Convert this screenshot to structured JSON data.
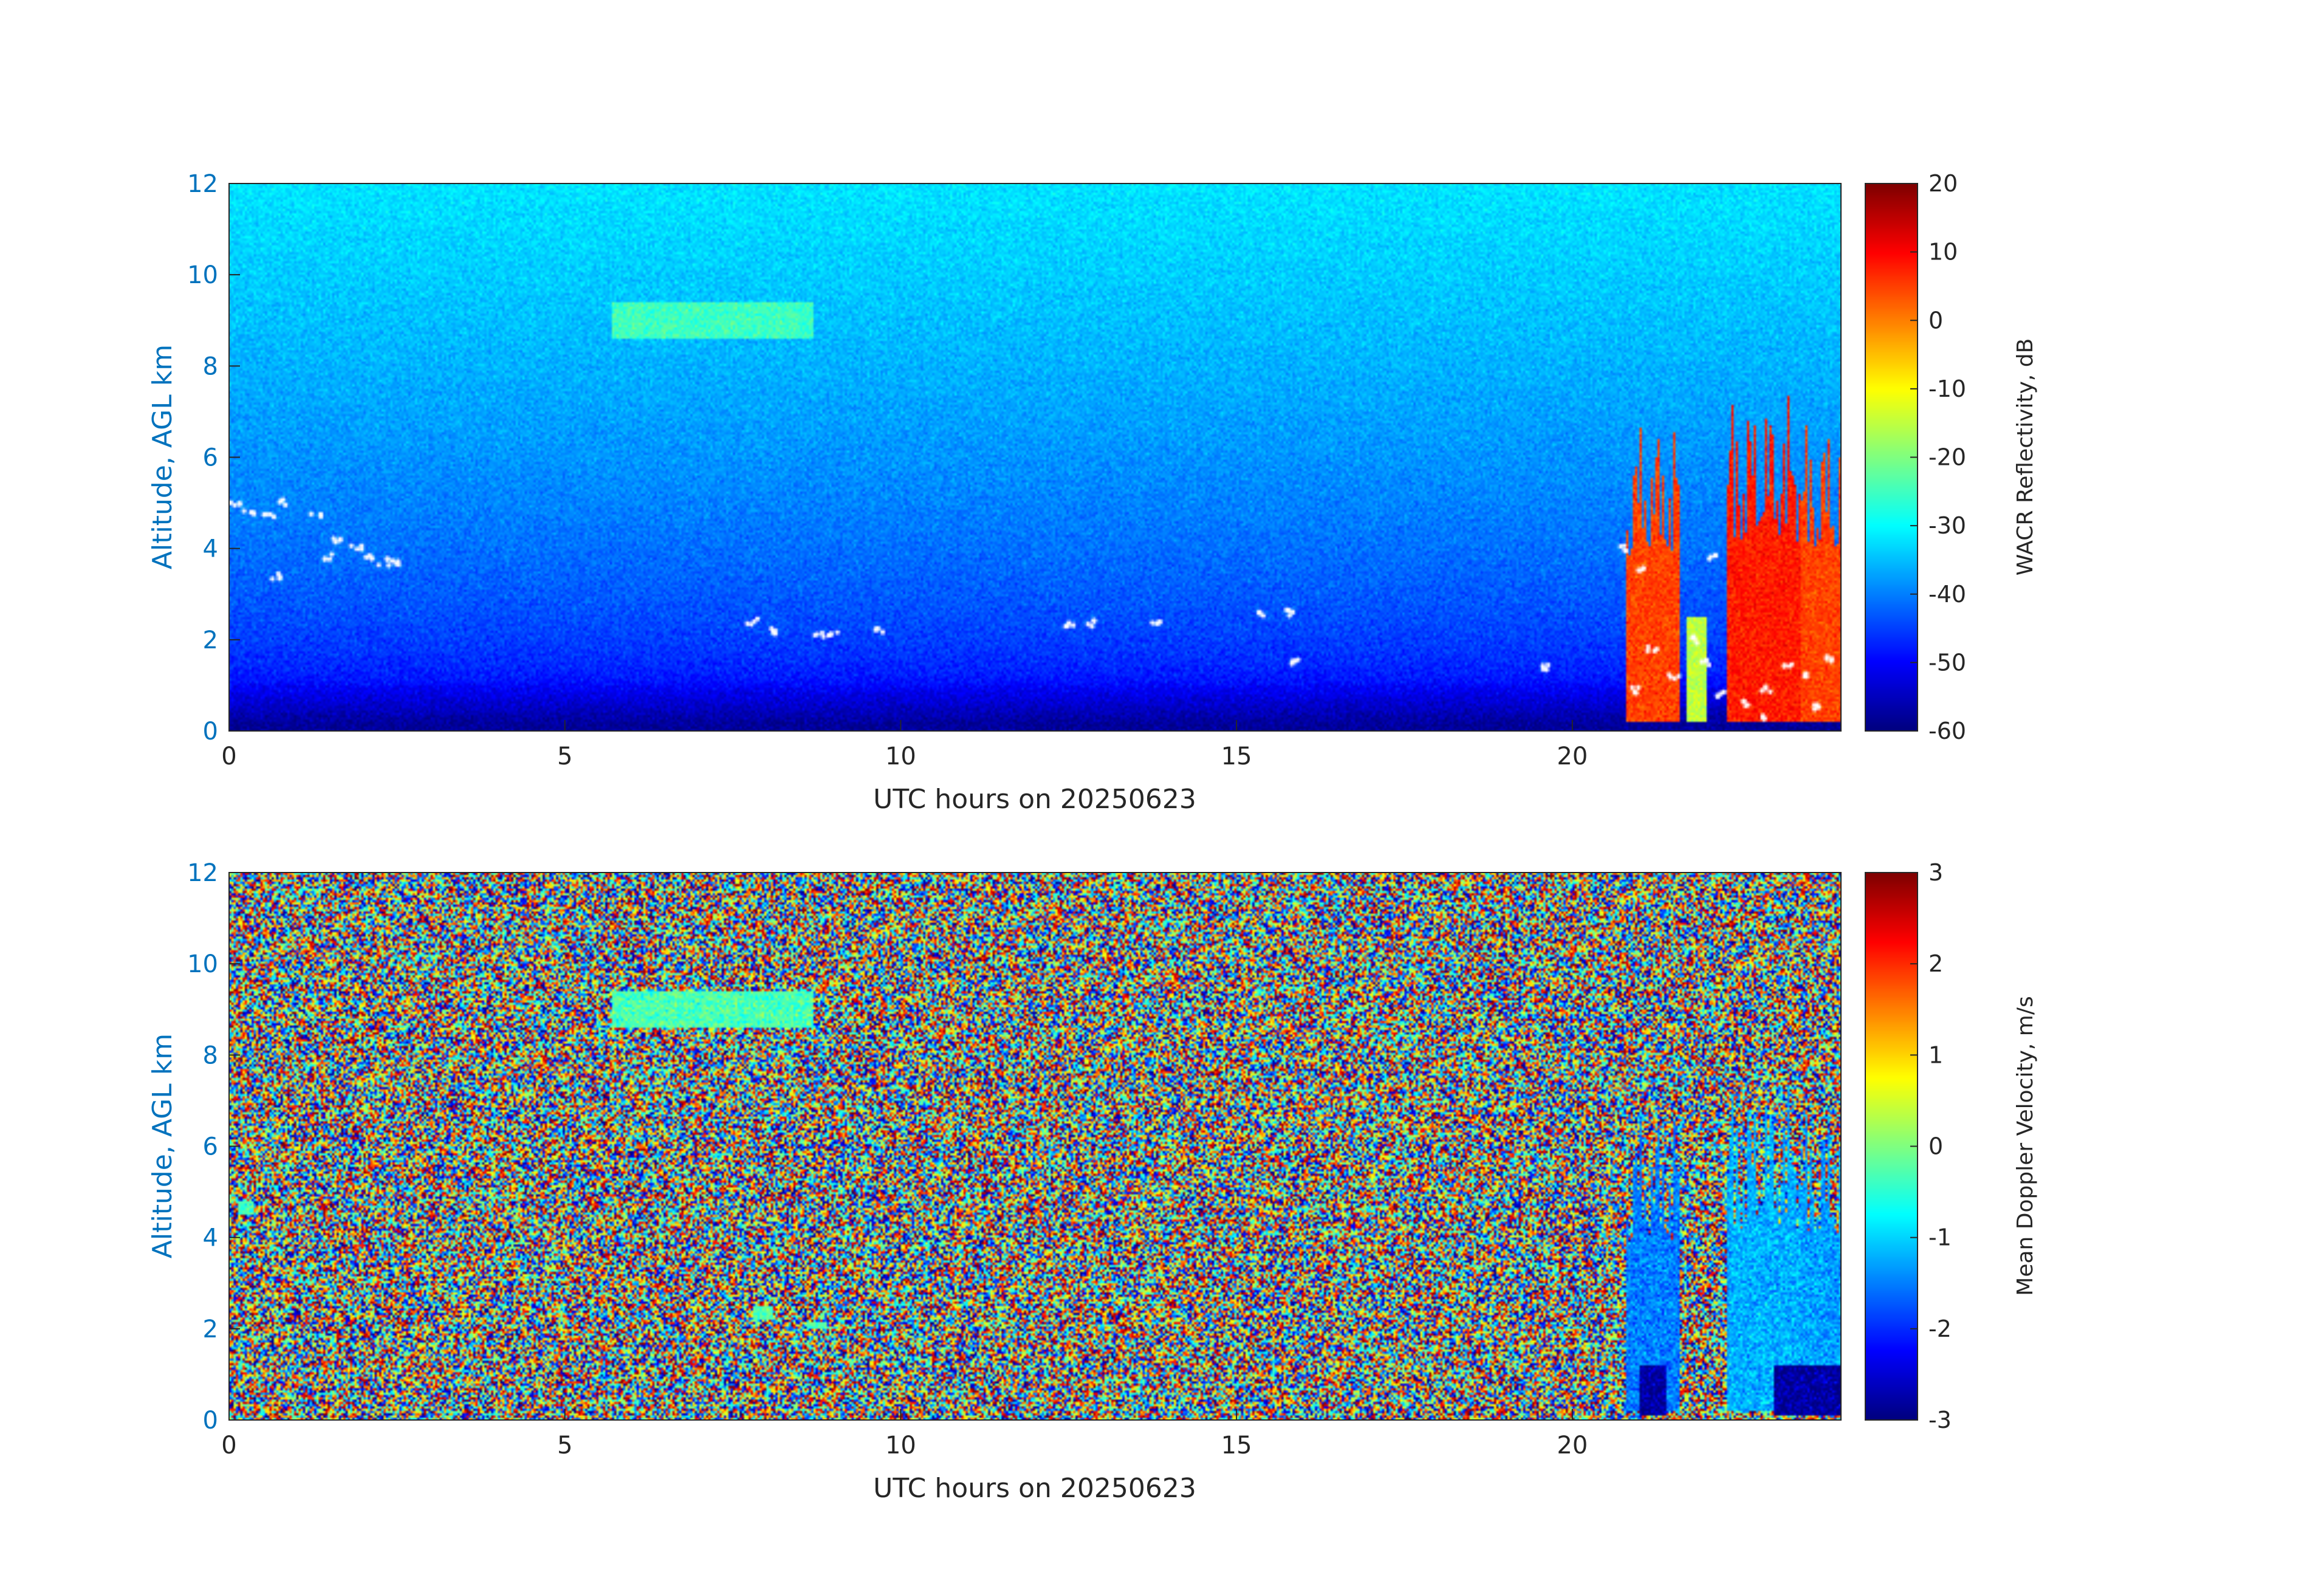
{
  "colors": {
    "ylabel": "#0072BD",
    "ytick": "#0072BD",
    "xtick": "#262626",
    "axis": "#262626"
  },
  "chart_data": [
    {
      "type": "heatmap",
      "id": "reflectivity",
      "xlabel": "UTC hours on 20250623",
      "ylabel": "Altitude, AGL km",
      "xlim": [
        0,
        24
      ],
      "ylim": [
        0,
        12
      ],
      "x_ticks": [
        "0",
        "5",
        "10",
        "15",
        "20"
      ],
      "y_ticks": [
        "0",
        "2",
        "4",
        "6",
        "8",
        "10",
        "12"
      ],
      "colorbar": {
        "label": "WACR Reflectivity, dB",
        "range": [
          -60,
          20
        ],
        "ticks": [
          "20",
          "10",
          "0",
          "-10",
          "-20",
          "-30",
          "-40",
          "-50",
          "-60"
        ],
        "colormap": "jet"
      },
      "background": {
        "description_free_field": "",
        "value_at_12km": -32,
        "value_at_1km": -50,
        "value_near_surface": -58
      },
      "features": [
        {
          "x": [
            5.7,
            8.7
          ],
          "y": [
            8.6,
            9.4
          ],
          "value": -25
        },
        {
          "x": [
            20.8,
            21.6
          ],
          "y": [
            0.2,
            6.8
          ],
          "value": 5
        },
        {
          "x": [
            21.7,
            22.0
          ],
          "y": [
            0.2,
            2.5
          ],
          "value": -15
        },
        {
          "x": [
            22.3,
            23.4
          ],
          "y": [
            0.2,
            7.4
          ],
          "value": 8
        },
        {
          "x": [
            23.4,
            24.0
          ],
          "y": [
            0.2,
            6.8
          ],
          "value": 5
        }
      ],
      "markers": [
        [
          0.1,
          5.0
        ],
        [
          0.3,
          4.8
        ],
        [
          0.6,
          4.7
        ],
        [
          0.8,
          5.0
        ],
        [
          1.3,
          4.7
        ],
        [
          1.6,
          4.2
        ],
        [
          1.9,
          4.0
        ],
        [
          2.1,
          3.8
        ],
        [
          2.3,
          3.7
        ],
        [
          2.5,
          3.7
        ],
        [
          0.7,
          3.4
        ],
        [
          1.5,
          3.8
        ],
        [
          7.8,
          2.4
        ],
        [
          8.1,
          2.2
        ],
        [
          8.8,
          2.1
        ],
        [
          9.0,
          2.1
        ],
        [
          9.7,
          2.2
        ],
        [
          12.5,
          2.3
        ],
        [
          12.8,
          2.35
        ],
        [
          13.8,
          2.35
        ],
        [
          15.4,
          2.55
        ],
        [
          15.8,
          2.6
        ],
        [
          15.9,
          1.5
        ],
        [
          19.6,
          1.4
        ],
        [
          20.8,
          4.0
        ],
        [
          21.0,
          3.5
        ],
        [
          21.2,
          1.8
        ],
        [
          21.5,
          1.2
        ],
        [
          21.8,
          2.0
        ],
        [
          22.0,
          1.5
        ],
        [
          22.1,
          3.8
        ],
        [
          22.2,
          0.8
        ],
        [
          22.6,
          0.6
        ],
        [
          22.9,
          0.9
        ],
        [
          23.2,
          1.4
        ],
        [
          23.5,
          1.2
        ],
        [
          23.8,
          1.6
        ],
        [
          22.8,
          0.3
        ],
        [
          23.6,
          0.5
        ],
        [
          20.9,
          0.9
        ]
      ]
    },
    {
      "type": "heatmap",
      "id": "doppler",
      "xlabel": "UTC hours on 20250623",
      "ylabel": "Altitude, AGL km",
      "xlim": [
        0,
        24
      ],
      "ylim": [
        0,
        12
      ],
      "x_ticks": [
        "0",
        "5",
        "10",
        "15",
        "20"
      ],
      "y_ticks": [
        "0",
        "2",
        "4",
        "6",
        "8",
        "10",
        "12"
      ],
      "colorbar": {
        "label": "Mean Doppler Velocity, m/s",
        "range": [
          -3,
          3
        ],
        "ticks": [
          "3",
          "2",
          "1",
          "0",
          "-1",
          "-2",
          "-3"
        ],
        "colormap": "jet"
      },
      "background": "random noise across full range",
      "features": [
        {
          "x": [
            5.7,
            8.7
          ],
          "y": [
            8.6,
            9.4
          ],
          "value": -0.3
        },
        {
          "x": [
            20.8,
            21.6
          ],
          "y": [
            0.2,
            6.8
          ],
          "value": -1.5
        },
        {
          "x": [
            22.3,
            23.4
          ],
          "y": [
            0.2,
            7.4
          ],
          "value": -1.2
        },
        {
          "x": [
            23.4,
            24.0
          ],
          "y": [
            0.2,
            6.8
          ],
          "value": -1.3
        },
        {
          "x": [
            21.0,
            21.4
          ],
          "y": [
            0.1,
            1.2
          ],
          "value": -2.8
        },
        {
          "x": [
            23.0,
            24.0
          ],
          "y": [
            0.1,
            1.2
          ],
          "value": -2.8
        },
        {
          "x": [
            0.15,
            0.35
          ],
          "y": [
            4.5,
            4.8
          ],
          "value": -0.3
        },
        {
          "x": [
            7.8,
            8.1
          ],
          "y": [
            2.2,
            2.5
          ],
          "value": -0.3
        },
        {
          "x": [
            8.6,
            8.9
          ],
          "y": [
            2.0,
            2.15
          ],
          "value": -0.3
        }
      ]
    }
  ]
}
